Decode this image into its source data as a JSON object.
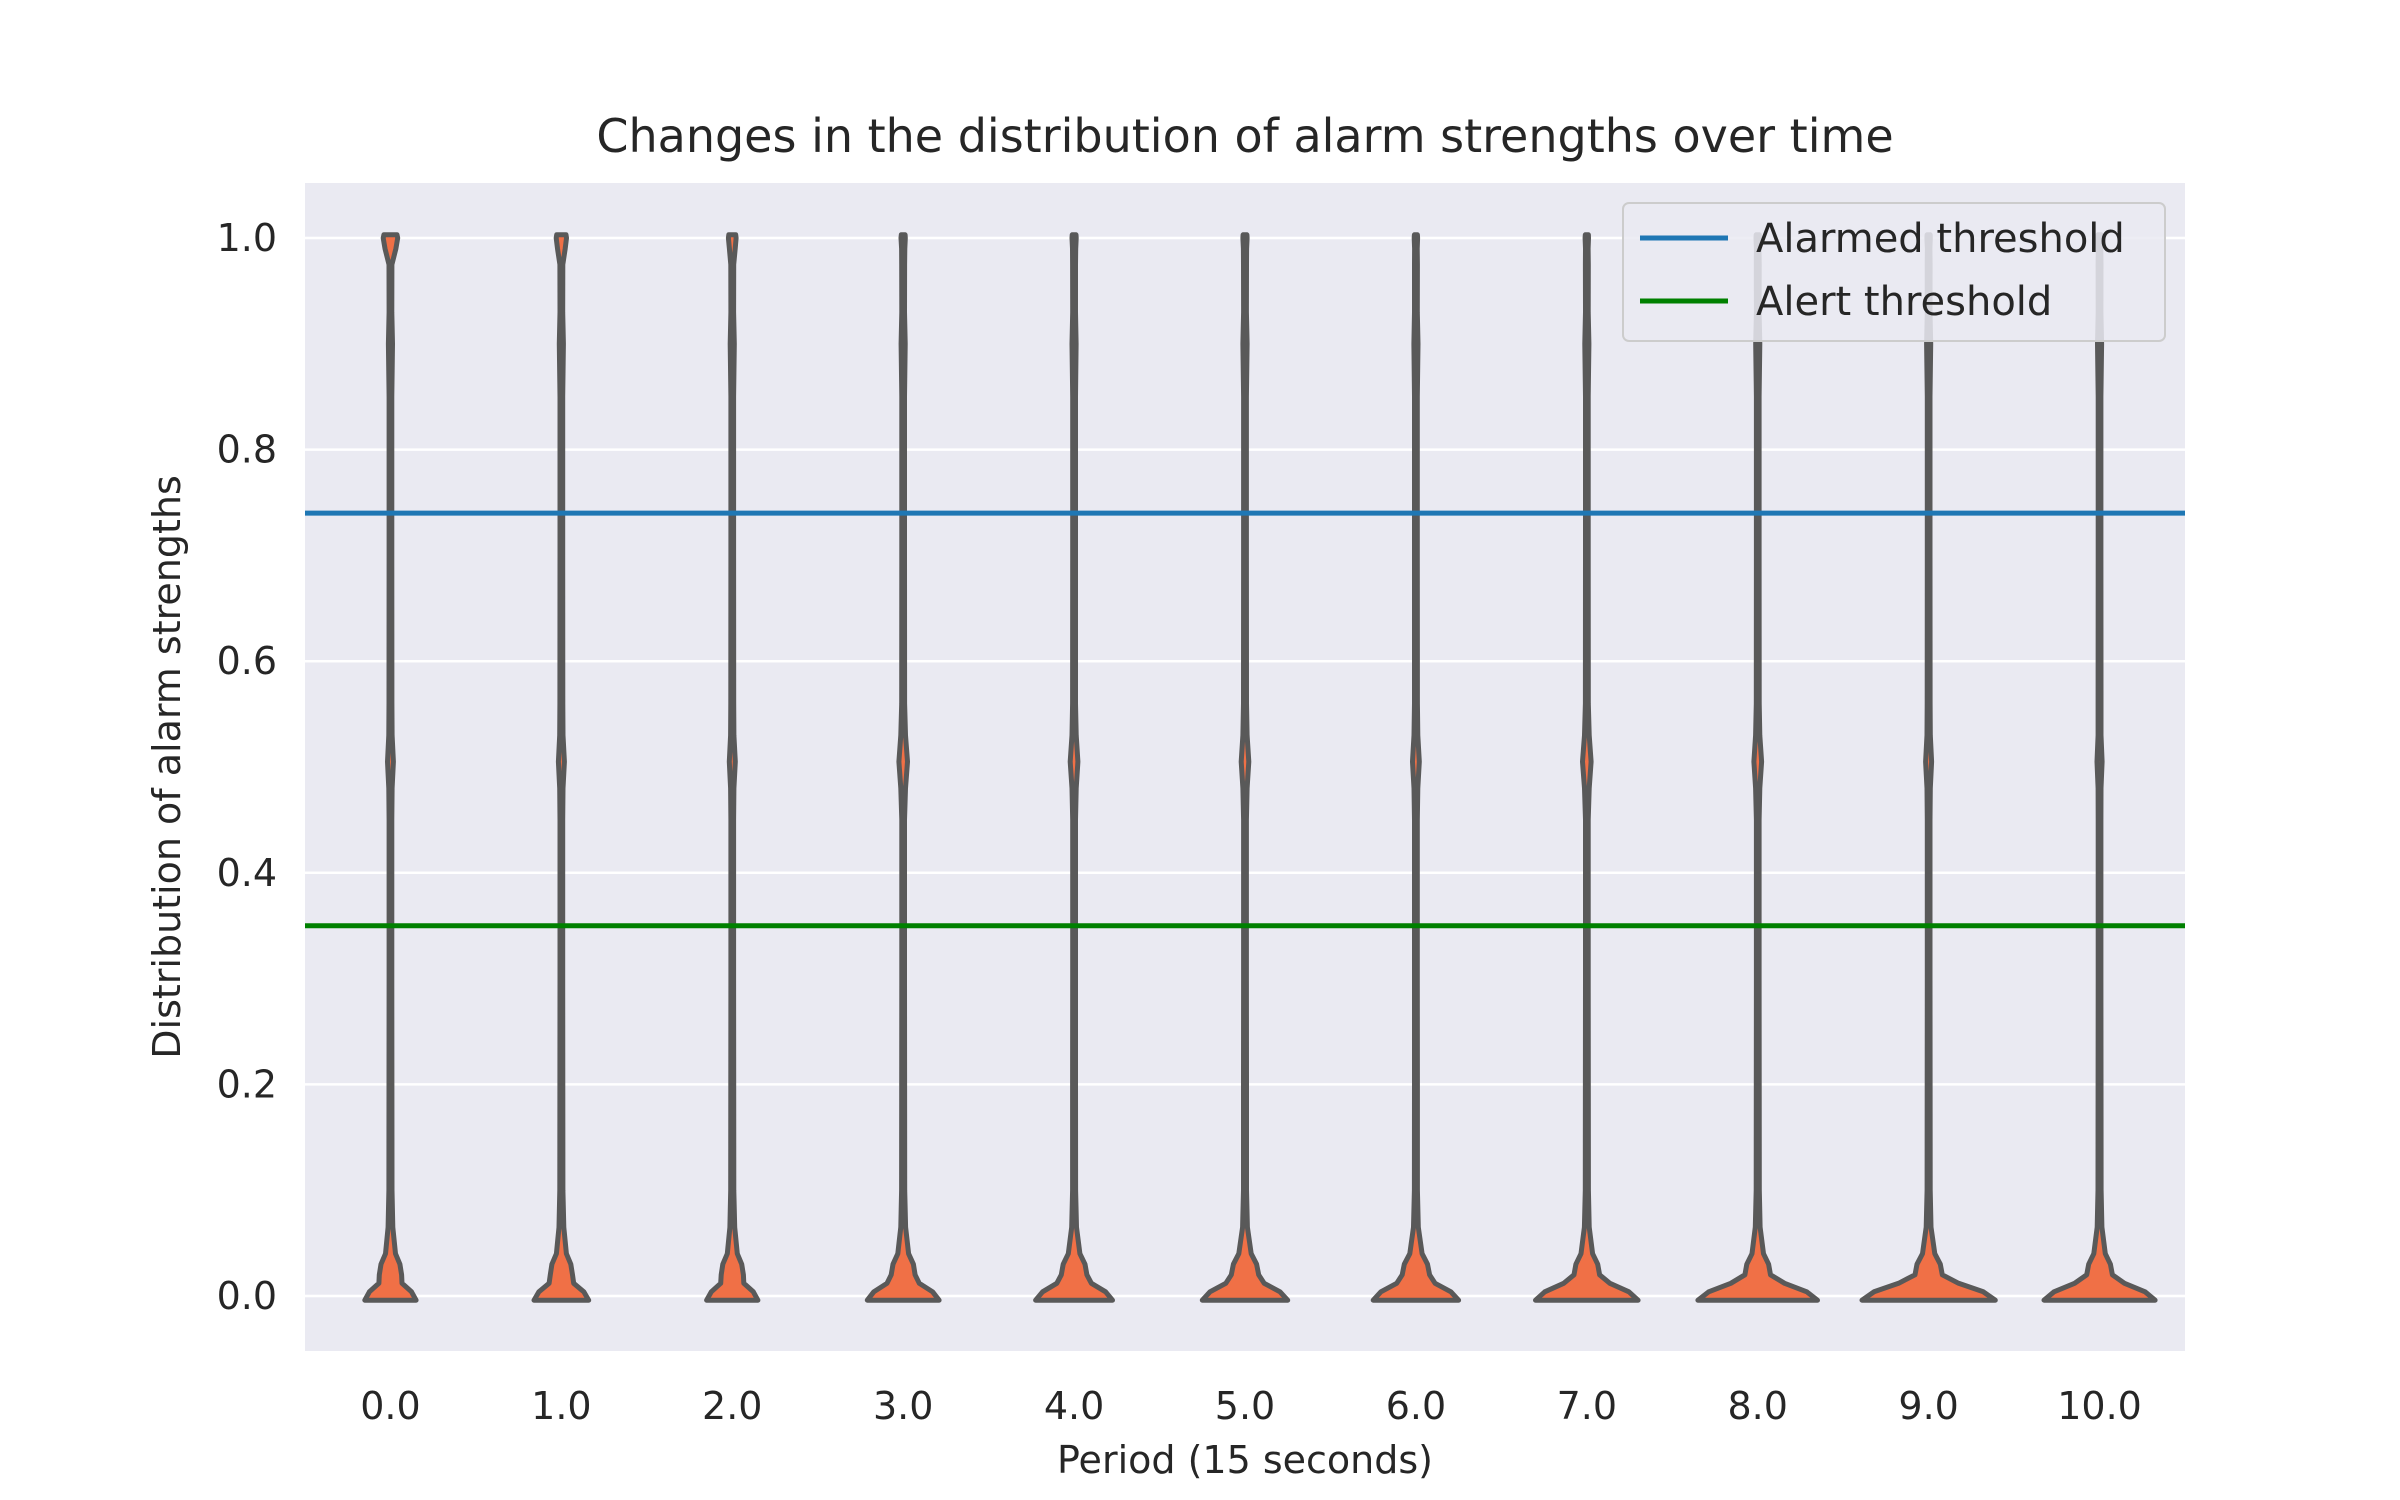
{
  "chart_data": {
    "type": "violin",
    "title": "Changes in the distribution of alarm strengths over time",
    "xlabel": "Period (15 seconds)",
    "ylabel": "Distribution of alarm strengths",
    "categories": [
      "0.0",
      "1.0",
      "2.0",
      "3.0",
      "4.0",
      "5.0",
      "6.0",
      "7.0",
      "8.0",
      "9.0",
      "10.0"
    ],
    "yticks": [
      "0.0",
      "0.2",
      "0.4",
      "0.6",
      "0.8",
      "1.0"
    ],
    "ylim": [
      -0.052,
      1.052
    ],
    "grid": true,
    "legend_position": "top-right",
    "thresholds": [
      {
        "name": "Alarmed threshold",
        "value": 0.74,
        "color": "#1f77b4"
      },
      {
        "name": "Alert threshold",
        "value": 0.35,
        "color": "#008000"
      }
    ],
    "violin_color": "#f07046",
    "violin_edge_color": "#595959",
    "background_color": "#eaeaf2",
    "violins": [
      {
        "period": "0.0",
        "base_halfwidth": 0.3,
        "peak_halfwidth": 0.13,
        "mid_halfwidth": 0.035,
        "top_halfwidth": 0.085
      },
      {
        "period": "1.0",
        "base_halfwidth": 0.32,
        "peak_halfwidth": 0.13,
        "mid_halfwidth": 0.035,
        "top_halfwidth": 0.06
      },
      {
        "period": "2.0",
        "base_halfwidth": 0.3,
        "peak_halfwidth": 0.13,
        "mid_halfwidth": 0.035,
        "top_halfwidth": 0.045
      },
      {
        "period": "3.0",
        "base_halfwidth": 0.42,
        "peak_halfwidth": 0.14,
        "mid_halfwidth": 0.05,
        "top_halfwidth": 0.025
      },
      {
        "period": "4.0",
        "base_halfwidth": 0.45,
        "peak_halfwidth": 0.15,
        "mid_halfwidth": 0.045,
        "top_halfwidth": 0.025
      },
      {
        "period": "5.0",
        "base_halfwidth": 0.5,
        "peak_halfwidth": 0.16,
        "mid_halfwidth": 0.045,
        "top_halfwidth": 0.025
      },
      {
        "period": "6.0",
        "base_halfwidth": 0.5,
        "peak_halfwidth": 0.16,
        "mid_halfwidth": 0.04,
        "top_halfwidth": 0.02
      },
      {
        "period": "7.0",
        "base_halfwidth": 0.6,
        "peak_halfwidth": 0.15,
        "mid_halfwidth": 0.05,
        "top_halfwidth": 0.02
      },
      {
        "period": "8.0",
        "base_halfwidth": 0.7,
        "peak_halfwidth": 0.15,
        "mid_halfwidth": 0.045,
        "top_halfwidth": 0.02
      },
      {
        "period": "9.0",
        "base_halfwidth": 0.78,
        "peak_halfwidth": 0.16,
        "mid_halfwidth": 0.035,
        "top_halfwidth": 0.02
      },
      {
        "period": "10.0",
        "base_halfwidth": 0.65,
        "peak_halfwidth": 0.15,
        "mid_halfwidth": 0.03,
        "top_halfwidth": 0.02
      }
    ]
  }
}
